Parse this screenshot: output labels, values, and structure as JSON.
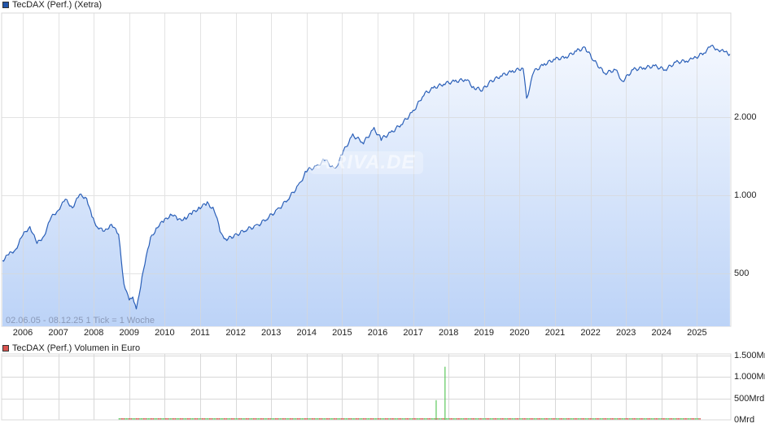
{
  "main_panel": {
    "legend_label": "TecDAX (Perf.) (Xetra)",
    "legend_color": "#2255aa",
    "range_note": "02.06.05 - 08.12.25   1 Tick = 1 Woche",
    "watermark": "ARIVA.DE",
    "y_ticks": [
      "2.000",
      "1.000",
      "500"
    ],
    "x_ticks": [
      "2006",
      "2007",
      "2008",
      "2009",
      "2010",
      "2011",
      "2012",
      "2013",
      "2014",
      "2015",
      "2016",
      "2017",
      "2018",
      "2019",
      "2020",
      "2021",
      "2022",
      "2023",
      "2024",
      "2025"
    ]
  },
  "volume_panel": {
    "legend_label": "TecDAX (Perf.) Volumen in Euro",
    "legend_color": "#d9534f",
    "y_ticks": [
      "1.500Mrd",
      "1.000Mrd",
      "500Mrd",
      "0Mrd"
    ]
  },
  "colors": {
    "line": "#2a5fb8",
    "fill_top": "#f3f7fe",
    "fill_bottom": "#bcd3f7",
    "grid": "#d8d8d8",
    "vol_up": "#5cc85c",
    "vol_down": "#d9534f"
  },
  "chart_data": [
    {
      "type": "area",
      "title": "TecDAX (Perf.) (Xetra)",
      "subtitle": "02.06.05 - 08.12.25, 1 Tick = 1 Woche",
      "xlabel": "",
      "ylabel": "",
      "y_scale": "log",
      "ylim": [
        300,
        3800
      ],
      "y_ticks": [
        500,
        1000,
        2000
      ],
      "grid": true,
      "legend_position": "top-left",
      "x": [
        2005.42,
        2005.6,
        2005.8,
        2006.0,
        2006.2,
        2006.4,
        2006.6,
        2006.8,
        2007.0,
        2007.2,
        2007.4,
        2007.6,
        2007.8,
        2007.95,
        2008.1,
        2008.3,
        2008.5,
        2008.7,
        2008.85,
        2009.0,
        2009.1,
        2009.2,
        2009.4,
        2009.6,
        2009.8,
        2010.0,
        2010.2,
        2010.4,
        2010.6,
        2010.8,
        2011.0,
        2011.2,
        2011.4,
        2011.6,
        2011.75,
        2012.0,
        2012.3,
        2012.6,
        2012.9,
        2013.2,
        2013.5,
        2013.8,
        2014.0,
        2014.3,
        2014.5,
        2014.8,
        2015.0,
        2015.3,
        2015.6,
        2015.9,
        2016.1,
        2016.4,
        2016.7,
        2017.0,
        2017.3,
        2017.6,
        2017.9,
        2018.2,
        2018.5,
        2018.7,
        2018.95,
        2019.2,
        2019.5,
        2019.8,
        2020.1,
        2020.2,
        2020.4,
        2020.7,
        2021.0,
        2021.3,
        2021.6,
        2021.85,
        2022.1,
        2022.4,
        2022.7,
        2022.9,
        2023.2,
        2023.5,
        2023.8,
        2024.1,
        2024.4,
        2024.7,
        2024.9,
        2025.2,
        2025.4,
        2025.6,
        2025.8,
        2025.93
      ],
      "values": [
        560,
        590,
        620,
        700,
        760,
        650,
        700,
        820,
        880,
        960,
        900,
        1000,
        980,
        820,
        760,
        720,
        780,
        700,
        460,
        390,
        410,
        360,
        520,
        680,
        760,
        800,
        850,
        800,
        820,
        860,
        900,
        930,
        880,
        700,
        680,
        700,
        740,
        760,
        820,
        880,
        980,
        1100,
        1250,
        1290,
        1380,
        1250,
        1450,
        1700,
        1600,
        1800,
        1650,
        1750,
        1900,
        2100,
        2450,
        2600,
        2700,
        2750,
        2800,
        2600,
        2550,
        2750,
        2900,
        3000,
        3100,
        2350,
        3000,
        3200,
        3350,
        3400,
        3600,
        3700,
        3300,
        2950,
        3050,
        2750,
        3050,
        3100,
        3150,
        3050,
        3250,
        3300,
        3350,
        3550,
        3750,
        3650,
        3550,
        3500
      ]
    },
    {
      "type": "bar",
      "title": "TecDAX (Perf.) Volumen in Euro",
      "ylabel": "",
      "ylim": [
        0,
        1500
      ],
      "y_unit": "Mrd",
      "y_ticks": [
        0,
        500,
        1000,
        1500
      ],
      "notes": "Volume near zero for most of the period, visible from ~2008.7 to ~2025.1; two spikes around 2017.7",
      "spikes": [
        {
          "x": 2017.65,
          "value": 460
        },
        {
          "x": 2017.9,
          "value": 1240
        }
      ]
    }
  ]
}
